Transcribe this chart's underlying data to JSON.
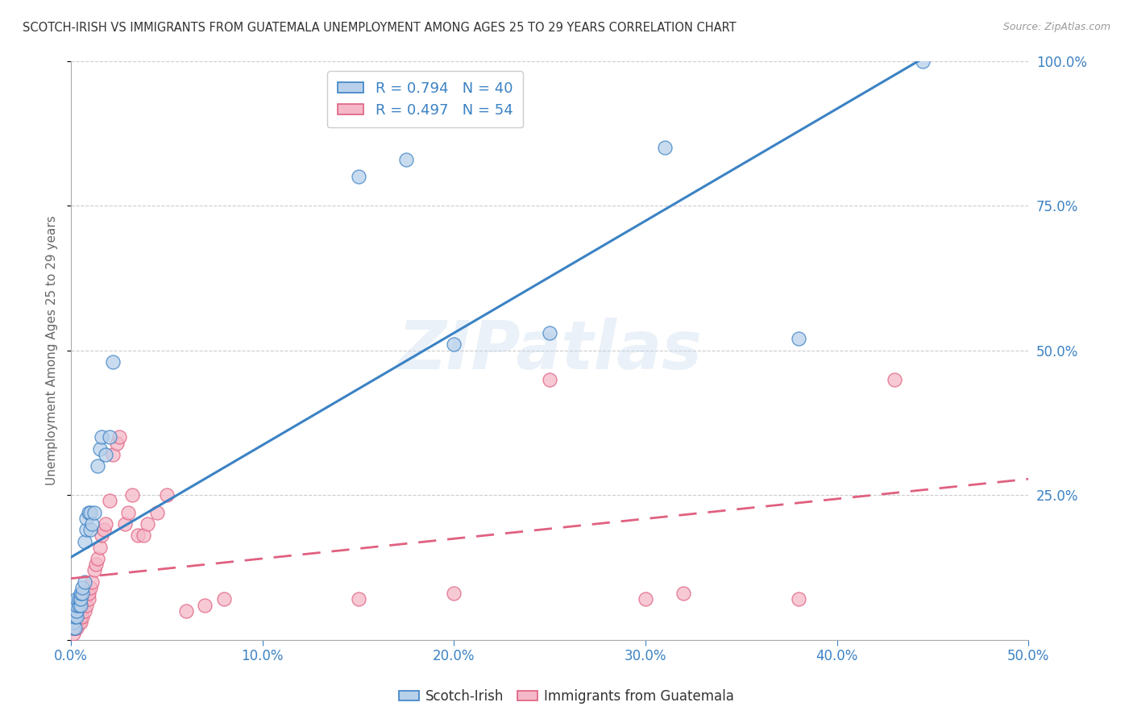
{
  "title": "SCOTCH-IRISH VS IMMIGRANTS FROM GUATEMALA UNEMPLOYMENT AMONG AGES 25 TO 29 YEARS CORRELATION CHART",
  "source": "Source: ZipAtlas.com",
  "ylabel": "Unemployment Among Ages 25 to 29 years",
  "xlim": [
    0,
    0.5
  ],
  "ylim": [
    0,
    1.0
  ],
  "xticks": [
    0.0,
    0.1,
    0.2,
    0.3,
    0.4,
    0.5
  ],
  "xticklabels": [
    "0.0%",
    "10.0%",
    "20.0%",
    "30.0%",
    "40.0%",
    "50.0%"
  ],
  "yticks": [
    0.0,
    0.25,
    0.5,
    0.75,
    1.0
  ],
  "yticklabels": [
    "",
    "25.0%",
    "50.0%",
    "75.0%",
    "100.0%"
  ],
  "watermark": "ZIPatlas",
  "legend1_R": "0.794",
  "legend1_N": "40",
  "legend2_R": "0.497",
  "legend2_N": "54",
  "scotch_irish_color": "#b8d0ea",
  "guatemala_color": "#f5b8c8",
  "line_scotch_color": "#3b82c4",
  "line_guatemala_color": "#e06080",
  "scotch_irish_x": [
    0.001,
    0.001,
    0.001,
    0.002,
    0.002,
    0.002,
    0.002,
    0.003,
    0.003,
    0.003,
    0.003,
    0.004,
    0.004,
    0.005,
    0.005,
    0.005,
    0.006,
    0.006,
    0.007,
    0.007,
    0.008,
    0.008,
    0.009,
    0.01,
    0.01,
    0.011,
    0.012,
    0.014,
    0.015,
    0.016,
    0.018,
    0.02,
    0.022,
    0.15,
    0.175,
    0.2,
    0.25,
    0.31,
    0.38,
    0.445
  ],
  "scotch_irish_y": [
    0.02,
    0.03,
    0.04,
    0.02,
    0.04,
    0.05,
    0.06,
    0.04,
    0.05,
    0.06,
    0.07,
    0.06,
    0.07,
    0.06,
    0.07,
    0.08,
    0.08,
    0.09,
    0.1,
    0.17,
    0.19,
    0.21,
    0.22,
    0.19,
    0.22,
    0.2,
    0.22,
    0.3,
    0.33,
    0.35,
    0.32,
    0.35,
    0.48,
    0.8,
    0.83,
    0.51,
    0.53,
    0.85,
    0.52,
    1.0
  ],
  "guatemala_x": [
    0.001,
    0.001,
    0.001,
    0.002,
    0.002,
    0.002,
    0.003,
    0.003,
    0.003,
    0.004,
    0.004,
    0.004,
    0.005,
    0.005,
    0.005,
    0.006,
    0.006,
    0.007,
    0.007,
    0.008,
    0.008,
    0.009,
    0.009,
    0.01,
    0.011,
    0.012,
    0.013,
    0.014,
    0.015,
    0.016,
    0.017,
    0.018,
    0.02,
    0.022,
    0.024,
    0.025,
    0.028,
    0.03,
    0.032,
    0.035,
    0.038,
    0.04,
    0.045,
    0.05,
    0.06,
    0.07,
    0.08,
    0.15,
    0.2,
    0.25,
    0.3,
    0.32,
    0.38,
    0.43
  ],
  "guatemala_y": [
    0.01,
    0.02,
    0.03,
    0.02,
    0.03,
    0.04,
    0.02,
    0.03,
    0.04,
    0.03,
    0.04,
    0.05,
    0.03,
    0.04,
    0.05,
    0.04,
    0.06,
    0.05,
    0.07,
    0.06,
    0.08,
    0.07,
    0.08,
    0.09,
    0.1,
    0.12,
    0.13,
    0.14,
    0.16,
    0.18,
    0.19,
    0.2,
    0.24,
    0.32,
    0.34,
    0.35,
    0.2,
    0.22,
    0.25,
    0.18,
    0.18,
    0.2,
    0.22,
    0.25,
    0.05,
    0.06,
    0.07,
    0.07,
    0.08,
    0.45,
    0.07,
    0.08,
    0.07,
    0.45
  ],
  "background_color": "#ffffff",
  "grid_color": "#cccccc"
}
